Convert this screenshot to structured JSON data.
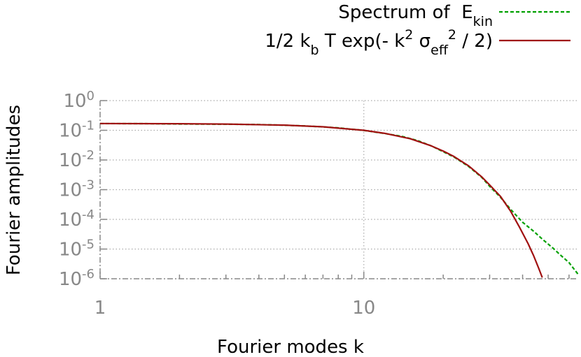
{
  "chart_data": {
    "type": "line",
    "xlabel": "Fourier modes k",
    "ylabel": "Fourier amplitudes",
    "xlog": true,
    "ylog": true,
    "grid": true,
    "xlim": [
      1,
      65
    ],
    "ylim": [
      1e-06,
      1
    ],
    "xticks": [
      1,
      10
    ],
    "xminorticks": [
      2,
      3,
      4,
      5,
      6,
      7,
      8,
      9,
      20,
      30,
      40,
      50,
      60
    ],
    "yticks": [
      {
        "value": 1,
        "label": "10",
        "power": "0"
      },
      {
        "value": 0.1,
        "label": "10",
        "power": "-1"
      },
      {
        "value": 0.01,
        "label": "10",
        "power": "-2"
      },
      {
        "value": 0.001,
        "label": "10",
        "power": "-3"
      },
      {
        "value": 0.0001,
        "label": "10",
        "power": "-4"
      },
      {
        "value": 1e-05,
        "label": "10",
        "power": "-5"
      },
      {
        "value": 1e-06,
        "label": "10",
        "power": "-6"
      }
    ],
    "legend": "top-right",
    "series": [
      {
        "name": [
          {
            "text": "Spectrum of  E"
          },
          {
            "sub": "kin"
          }
        ],
        "color": "#00a000",
        "dash": true,
        "x": [
          1,
          1.5,
          2,
          3,
          4,
          5,
          6,
          7,
          8,
          10,
          12,
          14,
          16,
          18,
          20,
          22,
          25,
          28,
          30,
          33,
          36,
          40,
          44,
          48,
          52,
          56,
          60,
          63,
          65
        ],
        "values": [
          0.168,
          0.167,
          0.163,
          0.16,
          0.156,
          0.148,
          0.14,
          0.13,
          0.121,
          0.099,
          0.078,
          0.062,
          0.045,
          0.03,
          0.019,
          0.0125,
          0.006,
          0.0026,
          0.0013,
          0.00055,
          0.00022,
          8e-05,
          4e-05,
          2e-05,
          1.1e-05,
          6e-06,
          3.5e-06,
          2e-06,
          1.4e-06
        ]
      },
      {
        "name": [
          {
            "text": "1/2 k"
          },
          {
            "sub": "b"
          },
          {
            "text": " T exp(- k"
          },
          {
            "sup": "2"
          },
          {
            "text": " σ"
          },
          {
            "sub": "eff"
          },
          {
            "sup": "2"
          },
          {
            "text": " / 2)"
          }
        ],
        "color": "#a01010",
        "dash": false,
        "x": [
          1,
          2,
          3,
          5,
          7,
          10,
          12,
          15,
          18,
          20,
          22,
          25,
          28,
          30,
          33,
          36,
          39,
          42,
          44,
          46,
          47.5
        ],
        "values": [
          0.169,
          0.166,
          0.162,
          0.149,
          0.131,
          0.1,
          0.079,
          0.052,
          0.03,
          0.02,
          0.013,
          0.0063,
          0.0027,
          0.00144,
          0.00059,
          0.00019,
          5.3e-05,
          1.5e-05,
          6.1e-06,
          2.3e-06,
          1.1e-06
        ]
      }
    ]
  }
}
